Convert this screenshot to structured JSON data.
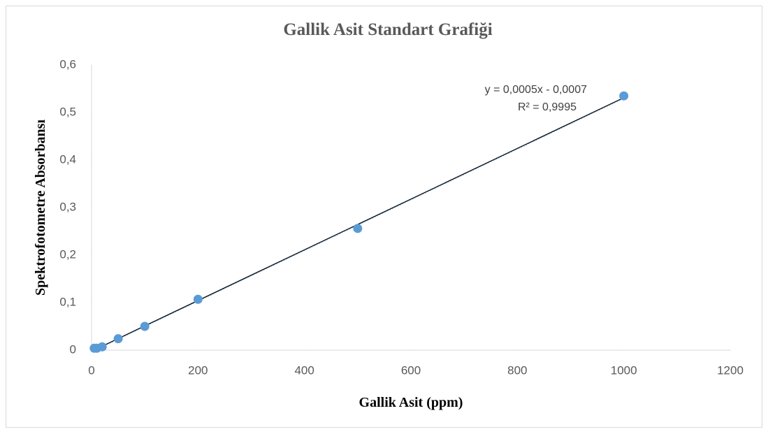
{
  "chart_data": {
    "type": "scatter",
    "title": "Gallik Asit Standart Grafiği",
    "x_label": "Gallik Asit (ppm)",
    "y_label": "Spektrofotometre Absorbansı",
    "x": [
      5,
      10,
      20,
      50,
      100,
      200,
      500,
      1000
    ],
    "values": [
      0.004,
      0.004,
      0.007,
      0.024,
      0.05,
      0.107,
      0.256,
      0.535
    ],
    "color": "#5b9bd5",
    "xlim": [
      0,
      1200
    ],
    "xticks": [
      0,
      200,
      400,
      600,
      800,
      1000,
      1200
    ],
    "ylim": [
      0,
      0.6
    ],
    "yticks": [
      0,
      {
        "value": 0.1,
        "label": "0,1"
      },
      {
        "value": 0.2,
        "label": "0,2"
      },
      {
        "value": 0.3,
        "label": "0,3"
      },
      {
        "value": 0.4,
        "label": "0,4"
      },
      {
        "value": 0.5,
        "label": "0,5"
      },
      {
        "value": 0.6,
        "label": "0,6"
      }
    ],
    "trendline": {
      "equation": "y = 0,0005x - 0,0007",
      "r_squared": "R² = 0,9995"
    }
  }
}
